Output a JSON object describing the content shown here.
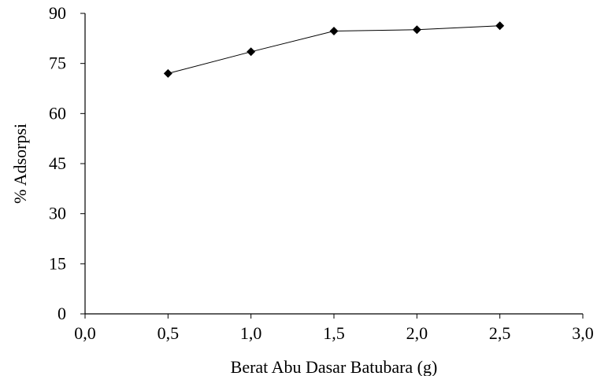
{
  "chart_data": {
    "type": "line",
    "title": "",
    "xlabel": "Berat Abu Dasar Batubara (g)",
    "ylabel": "% Adsorpsi",
    "xlim": [
      0,
      3
    ],
    "ylim": [
      0,
      90
    ],
    "xticks": [
      0,
      0.5,
      1,
      1.5,
      2,
      2.5,
      3
    ],
    "xtick_labels": [
      "0,0",
      "0,5",
      "1,0",
      "1,5",
      "2,0",
      "2,5",
      "3,0"
    ],
    "yticks": [
      0,
      15,
      30,
      45,
      60,
      75,
      90
    ],
    "ytick_labels": [
      "0",
      "15",
      "30",
      "45",
      "60",
      "75",
      "90"
    ],
    "grid": false,
    "series": [
      {
        "x": [
          0.5,
          1.0,
          1.5,
          2.0,
          2.5
        ],
        "y": [
          72.0,
          78.5,
          84.7,
          85.1,
          86.3
        ],
        "marker": "diamond",
        "color": "#000000"
      }
    ]
  }
}
